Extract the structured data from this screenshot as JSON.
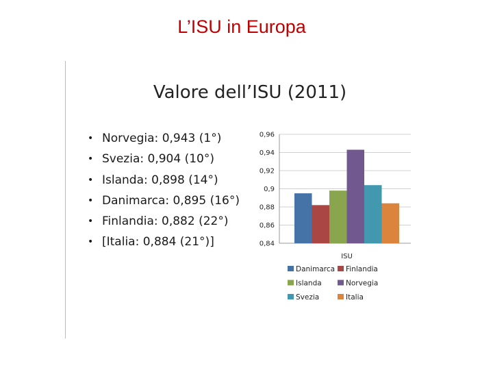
{
  "slide": {
    "title": "L’ISU in Europa"
  },
  "content": {
    "subtitle": "Valore dell’ISU (2011)",
    "bullets": [
      "Norvegia: 0,943 (1°)",
      "Svezia: 0,904 (10°)",
      "Islanda: 0,898 (14°)",
      "Danimarca: 0,895 (16°)",
      "Finlandia: 0,882 (22°)",
      "[Italia: 0,884 (21°)]"
    ],
    "bullet_symbol": "•"
  },
  "chart_data": {
    "type": "bar",
    "title": "",
    "xlabel": "ISU",
    "ylabel": "",
    "ylim": [
      0.84,
      0.96
    ],
    "yticks": [
      "0,84",
      "0,86",
      "0,88",
      "0,9",
      "0,92",
      "0,94",
      "0,96"
    ],
    "categories": [
      "ISU"
    ],
    "grid": true,
    "legend_position": "bottom",
    "series": [
      {
        "name": "Danimarca",
        "values": [
          0.895
        ],
        "color": "#4572a7"
      },
      {
        "name": "Finlandia",
        "values": [
          0.882
        ],
        "color": "#aa4643"
      },
      {
        "name": "Islanda",
        "values": [
          0.898
        ],
        "color": "#89a54e"
      },
      {
        "name": "Norvegia",
        "values": [
          0.943
        ],
        "color": "#71588f"
      },
      {
        "name": "Svezia",
        "values": [
          0.904
        ],
        "color": "#4198af"
      },
      {
        "name": "Italia",
        "values": [
          0.884
        ],
        "color": "#db843d"
      }
    ]
  }
}
